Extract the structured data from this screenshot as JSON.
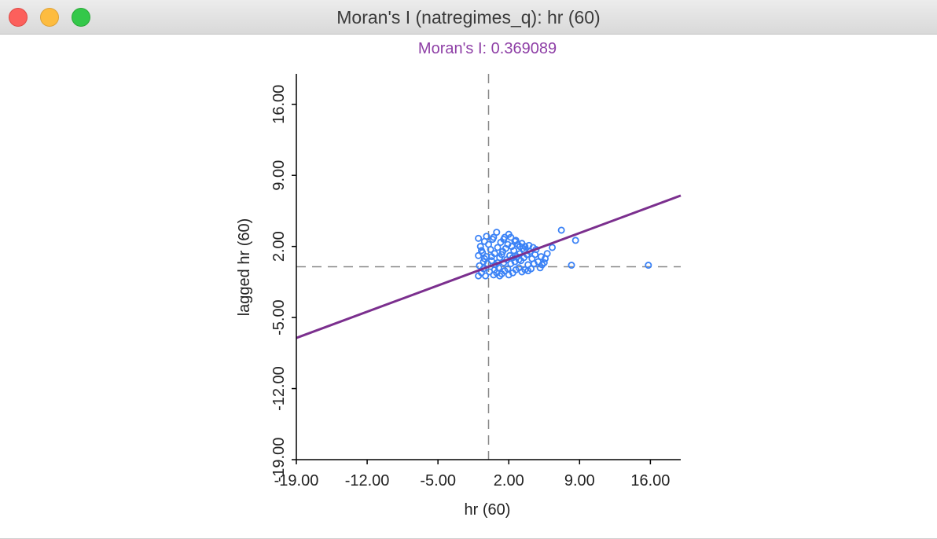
{
  "window": {
    "title": "Moran's I (natregimes_q): hr (60)"
  },
  "colors": {
    "title_text": "#8e3fa6",
    "regression_line": "#7b2f8e",
    "points": "#3b82f6",
    "axes": "#000000",
    "guide_lines": "#888888"
  },
  "chart_data": {
    "type": "scatter",
    "title": "Moran's I: 0.369089",
    "xlabel": "hr (60)",
    "ylabel": "lagged hr (60)",
    "xlim": [
      -19.0,
      19.0
    ],
    "ylim": [
      -19.0,
      19.0
    ],
    "xticks": [
      -19.0,
      -12.0,
      -5.0,
      2.0,
      9.0,
      16.0
    ],
    "yticks": [
      -19.0,
      -12.0,
      -5.0,
      2.0,
      9.0,
      16.0
    ],
    "xtick_labels": [
      "-19.00",
      "-12.00",
      "-5.00",
      "2.00",
      "9.00",
      "16.00"
    ],
    "ytick_labels": [
      "-19.00",
      "-12.00",
      "-5.00",
      "2.00",
      "9.00",
      "16.00"
    ],
    "guide_lines": {
      "x": 0,
      "y": 0
    },
    "grid": false,
    "regression": {
      "slope": 0.369089,
      "intercept": 0,
      "x_range": [
        -19.0,
        19.0
      ]
    },
    "series": [
      {
        "marker": "circle-open",
        "points": [
          [
            15.8,
            0.15
          ],
          [
            8.2,
            0.15
          ],
          [
            8.6,
            2.6
          ],
          [
            7.2,
            3.6
          ],
          [
            6.3,
            1.9
          ],
          [
            5.8,
            1.3
          ],
          [
            5.6,
            0.8
          ],
          [
            5.5,
            0.4
          ],
          [
            5.2,
            1.0
          ],
          [
            4.9,
            0.5
          ],
          [
            4.7,
            1.7
          ],
          [
            4.5,
            0.3
          ],
          [
            4.3,
            0.8
          ],
          [
            4.1,
            1.5
          ],
          [
            3.9,
            0.2
          ],
          [
            3.8,
            1.2
          ],
          [
            3.6,
            -0.3
          ],
          [
            3.5,
            0.9
          ],
          [
            3.4,
            1.8
          ],
          [
            3.3,
            -0.5
          ],
          [
            3.2,
            0.6
          ],
          [
            3.1,
            1.3
          ],
          [
            3.0,
            -0.1
          ],
          [
            2.9,
            2.2
          ],
          [
            2.8,
            1.0
          ],
          [
            2.7,
            -0.3
          ],
          [
            2.6,
            0.5
          ],
          [
            2.5,
            1.6
          ],
          [
            2.4,
            -0.6
          ],
          [
            2.3,
            2.0
          ],
          [
            2.2,
            0.3
          ],
          [
            2.1,
            1.1
          ],
          [
            2.0,
            3.2
          ],
          [
            1.9,
            -0.2
          ],
          [
            1.8,
            0.7
          ],
          [
            1.7,
            1.8
          ],
          [
            1.6,
            -0.4
          ],
          [
            1.6,
            2.9
          ],
          [
            1.5,
            0.4
          ],
          [
            1.4,
            1.5
          ],
          [
            1.3,
            -0.7
          ],
          [
            1.2,
            2.4
          ],
          [
            1.1,
            0.9
          ],
          [
            1.0,
            -0.1
          ],
          [
            0.9,
            1.9
          ],
          [
            0.8,
            3.4
          ],
          [
            0.7,
            0.2
          ],
          [
            0.6,
            1.3
          ],
          [
            0.5,
            -0.8
          ],
          [
            0.4,
            2.7
          ],
          [
            0.3,
            0.6
          ],
          [
            0.2,
            1.7
          ],
          [
            0.1,
            -0.5
          ],
          [
            0.0,
            2.2
          ],
          [
            -0.1,
            0.3
          ],
          [
            -0.2,
            1.0
          ],
          [
            -0.3,
            -0.9
          ],
          [
            -0.4,
            2.5
          ],
          [
            -0.5,
            0.5
          ],
          [
            -0.6,
            1.4
          ],
          [
            -0.7,
            -0.6
          ],
          [
            -0.8,
            2.0
          ],
          [
            -0.9,
            0.1
          ],
          [
            -1.0,
            1.1
          ],
          [
            -1.0,
            -0.9
          ],
          [
            -1.0,
            2.8
          ],
          [
            3.3,
            2.3
          ],
          [
            3.6,
            2.0
          ],
          [
            4.0,
            2.1
          ],
          [
            2.7,
            2.6
          ],
          [
            1.5,
            2.7
          ],
          [
            2.2,
            2.9
          ],
          [
            3.9,
            -0.4
          ],
          [
            4.2,
            -0.2
          ],
          [
            5.1,
            -0.1
          ],
          [
            4.6,
            1.2
          ],
          [
            5.3,
            0.2
          ],
          [
            2.0,
            -0.8
          ],
          [
            1.1,
            -0.9
          ],
          [
            0.6,
            -0.3
          ],
          [
            -0.4,
            0.8
          ],
          [
            0.9,
            0.4
          ],
          [
            2.4,
            0.9
          ],
          [
            3.0,
            0.7
          ],
          [
            1.3,
            1.2
          ],
          [
            0.3,
            1.0
          ],
          [
            -0.7,
            1.6
          ],
          [
            -0.2,
            3.0
          ],
          [
            0.5,
            2.9
          ],
          [
            1.9,
            2.2
          ],
          [
            2.6,
            2.5
          ],
          [
            3.1,
            2.0
          ],
          [
            3.5,
            1.6
          ],
          [
            4.4,
            1.9
          ],
          [
            0.8,
            -0.6
          ],
          [
            -0.5,
            -0.2
          ]
        ]
      }
    ]
  }
}
